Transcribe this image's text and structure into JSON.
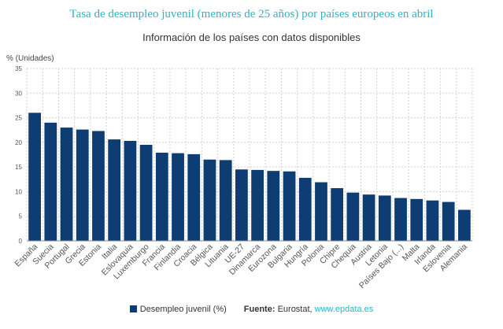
{
  "chart_data": {
    "type": "bar",
    "title": "Tasa de desempleo juvenil (menores de 25 años) por países europeos en abril",
    "subtitle": "Información de los países con datos disponibles",
    "ylabel": "% (Unidades)",
    "ylim": [
      0,
      35
    ],
    "yticks": [
      0,
      5,
      10,
      15,
      20,
      25,
      30,
      35
    ],
    "grid": true,
    "legend_position": "bottom",
    "categories": [
      "España",
      "Suecia",
      "Portugal",
      "Grecia",
      "Estonia",
      "Italia",
      "Eslovaquia",
      "Luxemburgo",
      "Francia",
      "Finlandia",
      "Croacia",
      "Bélgica",
      "Lituania",
      "UE-27",
      "Dinamarca",
      "Eurozona",
      "Bulgaria",
      "Hungría",
      "Polonia",
      "Chipre",
      "Chequia",
      "Austria",
      "Letonia",
      "Países Bajo (...)",
      "Malta",
      "Irlanda",
      "Eslovenia",
      "Alemania"
    ],
    "series": [
      {
        "name": "Desempleo juvenil (%)",
        "color": "#0d3d73",
        "values": [
          26.0,
          24.0,
          23.0,
          22.6,
          22.3,
          20.6,
          20.3,
          19.5,
          17.9,
          17.8,
          17.6,
          16.5,
          16.4,
          14.5,
          14.4,
          14.2,
          14.1,
          12.8,
          11.9,
          10.7,
          9.8,
          9.4,
          9.2,
          8.7,
          8.5,
          8.2,
          7.9,
          6.3
        ]
      }
    ]
  },
  "legend": {
    "series_label": "Desempleo juvenil (%)",
    "source_label": "Fuente:",
    "source_text": " Eurostat, ",
    "source_link": "www.epdata.es"
  }
}
